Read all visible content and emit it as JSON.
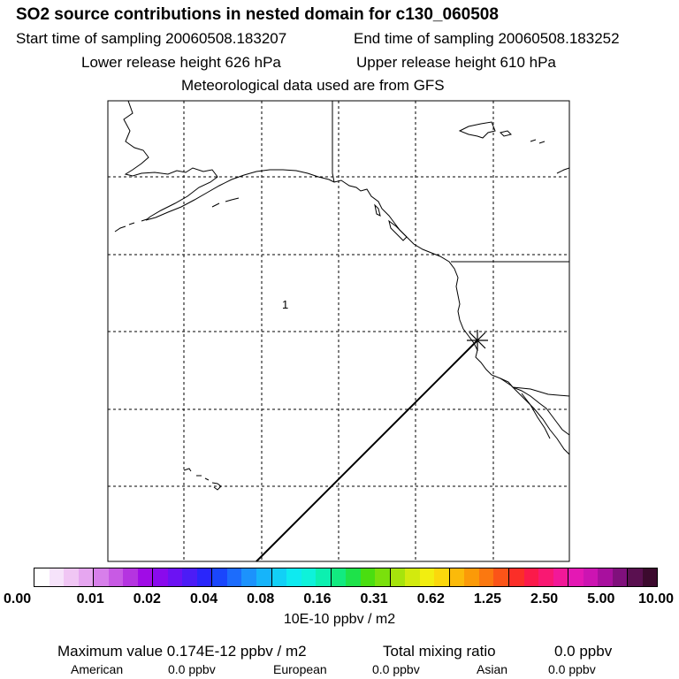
{
  "header": {
    "title": "SO2 source contributions in nested domain for c130_060508",
    "start_time": "Start time of sampling 20060508.183207",
    "end_time": "End time of sampling 20060508.183252",
    "lower_release": "Lower release height  626 hPa",
    "upper_release": "Upper release height  610 hPa",
    "met_data": "Meteorological data used are from GFS"
  },
  "map": {
    "label": "1",
    "marker": "sampling-location"
  },
  "colorbar": {
    "colors": [
      "#ffffff",
      "#f6e3fa",
      "#f0c6f4",
      "#e6a6f0",
      "#d77fea",
      "#c85ae4",
      "#b534e0",
      "#a00ce6",
      "#8a0aed",
      "#6c12f3",
      "#4c1cf6",
      "#2a26fb",
      "#1a46fc",
      "#1c6cfc",
      "#1c92fc",
      "#16b4fa",
      "#12d0f6",
      "#0eeaf0",
      "#0ef2da",
      "#0cf0b0",
      "#12ea80",
      "#1ee24a",
      "#4ade10",
      "#7ae00c",
      "#a6e40c",
      "#d2ea0e",
      "#f2ee10",
      "#fbd80c",
      "#fbba0a",
      "#fb9a08",
      "#fb7810",
      "#fb5418",
      "#fb2e28",
      "#fb1a4a",
      "#f91872",
      "#f21898",
      "#e418b4",
      "#cc14b2",
      "#a8109e",
      "#80107c",
      "#5a1050",
      "#3c0a2e"
    ],
    "ticks": [
      "0.00",
      "0.01",
      "0.02",
      "0.04",
      "0.08",
      "0.16",
      "0.31",
      "0.62",
      "1.25",
      "2.50",
      "5.00",
      "10.00"
    ],
    "units": "10E-10 ppbv / m2"
  },
  "stats": {
    "max_value": "Maximum value  0.174E-12 ppbv / m2",
    "total_mixing": "Total mixing ratio",
    "total_value": "0.0 ppbv",
    "american_label": "American",
    "american_value": "0.0 ppbv",
    "european_label": "European",
    "european_value": "0.0 ppbv",
    "asian_label": "Asian",
    "asian_value": "0.0 ppbv"
  }
}
